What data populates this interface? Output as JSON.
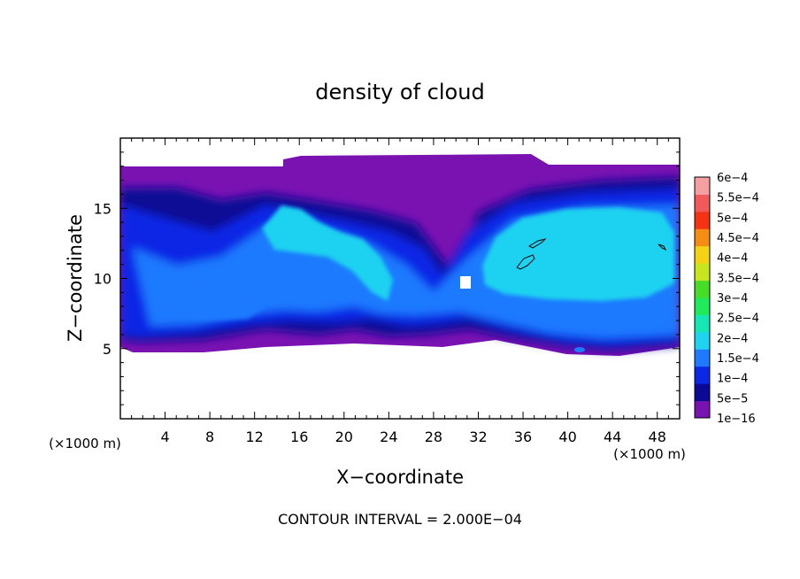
{
  "chart_data": {
    "type": "heatmap",
    "title": "density of cloud",
    "xlabel": "X−coordinate",
    "ylabel": "Z−coordinate",
    "x_unit_label": "(×1000 m)",
    "z_unit_label": "(×1000 m)",
    "footer": "CONTOUR INTERVAL = 2.000E−04",
    "xlim": [
      0,
      50
    ],
    "ylim": [
      0,
      20
    ],
    "x_ticks": [
      4,
      8,
      12,
      16,
      20,
      24,
      28,
      32,
      36,
      40,
      44,
      48
    ],
    "x_tick_labels": [
      "4",
      "8",
      "12",
      "16",
      "20",
      "24",
      "28",
      "32",
      "36",
      "40",
      "44",
      "48"
    ],
    "y_ticks": [
      5,
      10,
      15
    ],
    "y_tick_labels": [
      "5",
      "10",
      "15"
    ],
    "grid": false,
    "colorbar": {
      "labels": [
        "1e−16",
        "5e−5",
        "1e−4",
        "1.5e−4",
        "2e−4",
        "2.5e−4",
        "3e−4",
        "3.5e−4",
        "4e−4",
        "4.5e−4",
        "5e−4",
        "5.5e−4",
        "6e−4"
      ],
      "colors": [
        "#7a12b2",
        "#0a0a96",
        "#0a28e6",
        "#1e7aff",
        "#1ed2f0",
        "#14e6b4",
        "#1eea5a",
        "#46dc28",
        "#c8e61e",
        "#f5d214",
        "#f58c14",
        "#f53214",
        "#f05a5a",
        "#f5a0a0"
      ]
    }
  }
}
